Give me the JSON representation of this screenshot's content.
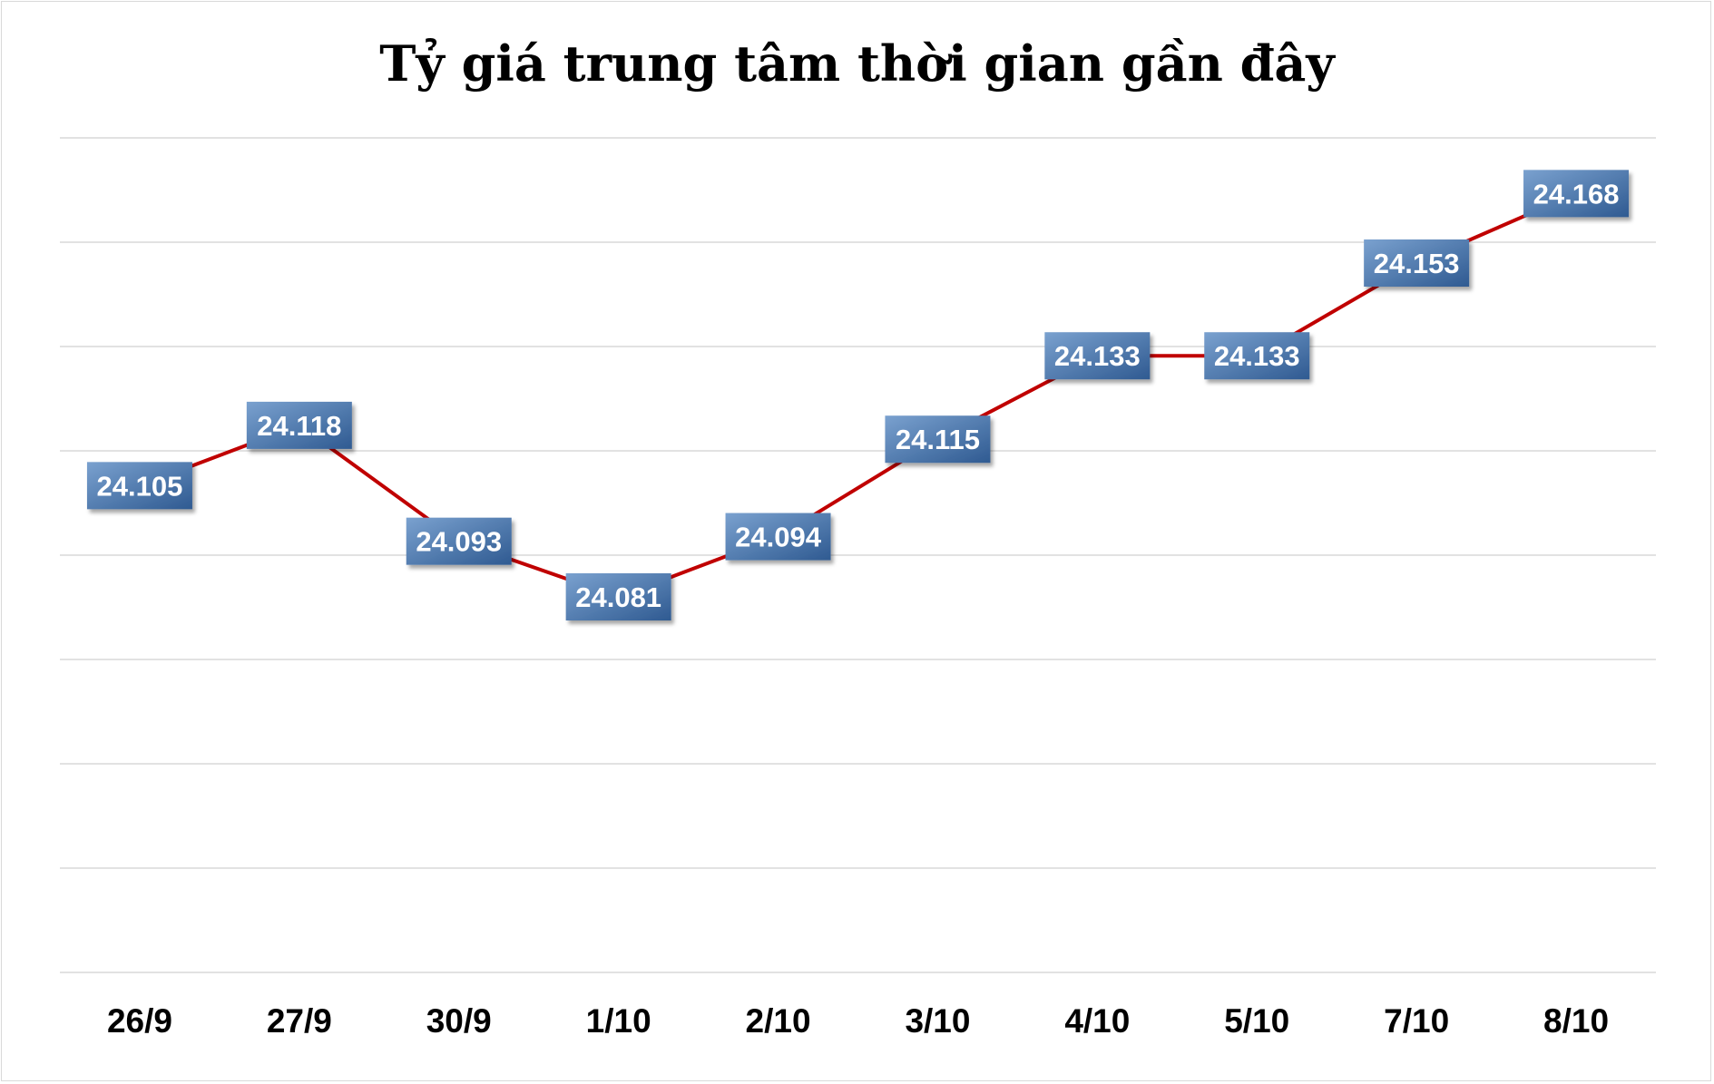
{
  "chart_data": {
    "type": "line",
    "title": "Tỷ giá trung tâm thời gian gần đây",
    "xlabel": "",
    "ylabel": "",
    "categories": [
      "26/9",
      "27/9",
      "30/9",
      "1/10",
      "2/10",
      "3/10",
      "4/10",
      "5/10",
      "7/10",
      "8/10"
    ],
    "values": [
      24105,
      24118,
      24093,
      24081,
      24094,
      24115,
      24133,
      24133,
      24153,
      24168
    ],
    "value_labels": [
      "24.105",
      "24.118",
      "24.093",
      "24.081",
      "24.094",
      "24.115",
      "24.133",
      "24.133",
      "24.153",
      "24.168"
    ],
    "ylim": [
      24000,
      24180
    ],
    "grid": true,
    "y_axis_labels_shown": false,
    "legend": "none",
    "colors": {
      "line": "#c00000",
      "label_fill_top": "#7aa1cf",
      "label_fill_bottom": "#2f5a91",
      "label_text": "#ffffff",
      "grid": "#d9d9d9"
    }
  }
}
